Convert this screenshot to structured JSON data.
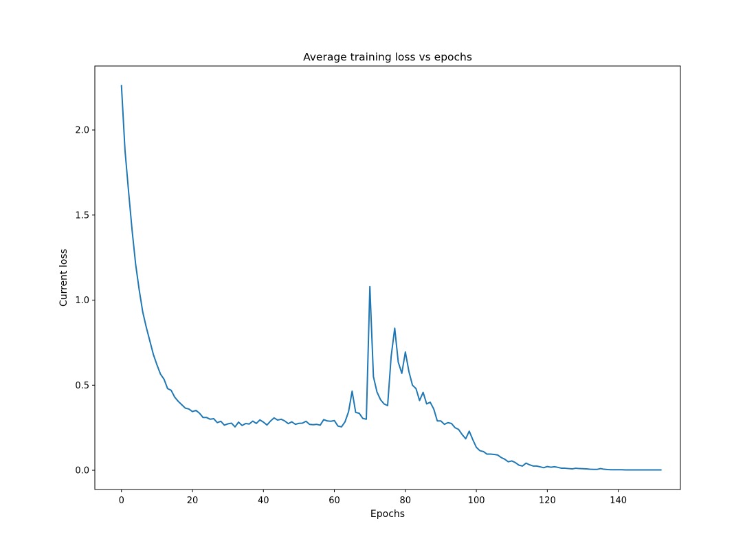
{
  "chart_data": {
    "type": "line",
    "title": "Average training loss vs epochs",
    "xlabel": "Epochs",
    "ylabel": "Current loss",
    "xlim": [
      -7.5,
      157.5
    ],
    "ylim": [
      -0.113,
      2.376
    ],
    "xticks": [
      0,
      20,
      40,
      60,
      80,
      100,
      120,
      140
    ],
    "xtick_labels": [
      "0",
      "20",
      "40",
      "60",
      "80",
      "100",
      "120",
      "140"
    ],
    "yticks": [
      0.0,
      0.5,
      1.0,
      1.5,
      2.0
    ],
    "ytick_labels": [
      "0.0",
      "0.5",
      "1.0",
      "1.5",
      "2.0"
    ],
    "grid": false,
    "color": "#1f77b4",
    "series": [
      {
        "values": [
          2.26,
          1.88,
          1.64,
          1.41,
          1.21,
          1.06,
          0.93,
          0.84,
          0.76,
          0.68,
          0.62,
          0.565,
          0.535,
          0.48,
          0.47,
          0.43,
          0.405,
          0.385,
          0.365,
          0.36,
          0.345,
          0.352,
          0.335,
          0.31,
          0.31,
          0.3,
          0.303,
          0.28,
          0.288,
          0.265,
          0.273,
          0.277,
          0.255,
          0.283,
          0.263,
          0.275,
          0.272,
          0.289,
          0.275,
          0.296,
          0.283,
          0.266,
          0.289,
          0.308,
          0.295,
          0.3,
          0.29,
          0.274,
          0.285,
          0.27,
          0.276,
          0.277,
          0.288,
          0.27,
          0.268,
          0.27,
          0.265,
          0.298,
          0.29,
          0.288,
          0.292,
          0.26,
          0.255,
          0.285,
          0.345,
          0.465,
          0.34,
          0.335,
          0.305,
          0.3,
          1.08,
          0.55,
          0.46,
          0.415,
          0.39,
          0.38,
          0.67,
          0.835,
          0.635,
          0.57,
          0.695,
          0.58,
          0.5,
          0.48,
          0.41,
          0.458,
          0.39,
          0.4,
          0.36,
          0.29,
          0.29,
          0.27,
          0.28,
          0.275,
          0.25,
          0.24,
          0.21,
          0.185,
          0.23,
          0.18,
          0.135,
          0.115,
          0.11,
          0.095,
          0.095,
          0.093,
          0.09,
          0.075,
          0.065,
          0.05,
          0.055,
          0.045,
          0.03,
          0.025,
          0.042,
          0.032,
          0.025,
          0.025,
          0.02,
          0.015,
          0.022,
          0.018,
          0.021,
          0.017,
          0.012,
          0.012,
          0.01,
          0.008,
          0.012,
          0.01,
          0.009,
          0.008,
          0.006,
          0.005,
          0.005,
          0.01,
          0.006,
          0.004,
          0.003,
          0.003,
          0.003,
          0.003,
          0.002,
          0.002,
          0.002,
          0.002,
          0.002,
          0.002,
          0.002,
          0.002,
          0.002,
          0.002,
          0.002
        ]
      }
    ]
  }
}
